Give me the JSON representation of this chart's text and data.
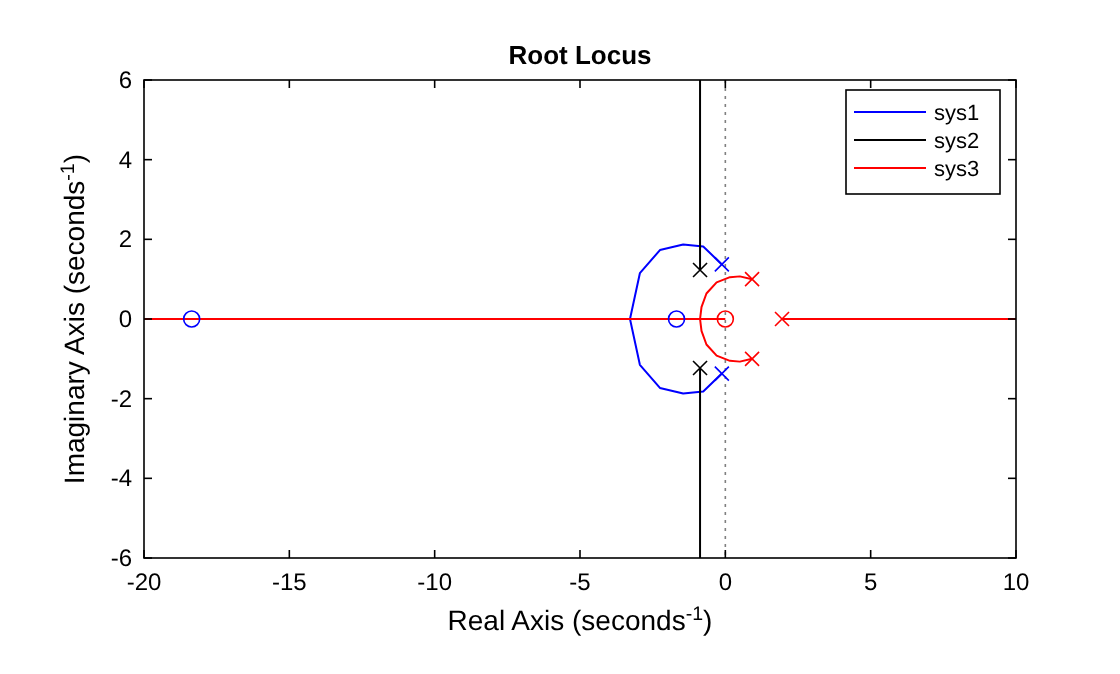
{
  "chart_data": {
    "type": "line",
    "title": "Root Locus",
    "xlabel": "Real Axis (seconds$^{-1}$)",
    "ylabel": "Imaginary Axis (seconds$^{-1}$)",
    "xlim": [
      -20,
      10
    ],
    "xticks": [
      -20,
      -15,
      -10,
      -5,
      0,
      5,
      10
    ],
    "ylim": [
      -6,
      6
    ],
    "yticks": [
      -6,
      -4,
      -2,
      0,
      2,
      4,
      6
    ],
    "grid": false,
    "legend": "top right",
    "line_style": "solid",
    "ref_lines": [
      {
        "axis": "x",
        "value": 0,
        "color": "#808080",
        "line_style": "dotted"
      }
    ],
    "series": [
      {
        "name": "sys1",
        "color": "#0000ff",
        "marker": "none",
        "x": [
          -0.12,
          -0.76,
          -1.45,
          -2.25,
          -2.94,
          -3.28,
          -2.94,
          -2.25,
          -1.45,
          -0.76,
          -0.12
        ],
        "values": [
          1.37,
          1.82,
          1.87,
          1.73,
          1.15,
          0,
          -1.15,
          -1.73,
          -1.87,
          -1.82,
          -1.37
        ]
      },
      {
        "name": "sys2",
        "color": "#000000",
        "marker": "none",
        "x": [
          -0.87,
          -0.87
        ],
        "values": [
          1.23,
          6
        ]
      },
      {
        "color": "#000000",
        "marker": "none",
        "x": [
          -0.87,
          -0.87
        ],
        "values": [
          -1.23,
          -6
        ]
      },
      {
        "name": "sys3",
        "color": "#ff0000",
        "marker": "none",
        "x": [
          0.92,
          0.5,
          0.16,
          -0.3,
          -0.65,
          -0.82,
          -0.87,
          -0.82,
          -0.65,
          -0.3,
          0.16,
          0.5,
          0.92
        ],
        "values": [
          1.0,
          1.07,
          1.05,
          0.92,
          0.64,
          0.3,
          0,
          -0.3,
          -0.64,
          -0.92,
          -1.05,
          -1.07,
          -1.0
        ]
      },
      {
        "color": "#ff0000",
        "marker": "none",
        "x": [
          -20,
          0
        ],
        "values": [
          0,
          0
        ]
      },
      {
        "color": "#ff0000",
        "marker": "none",
        "x": [
          1.95,
          10
        ],
        "values": [
          0,
          0
        ]
      },
      {
        "type": "scatter",
        "color": "#0000ff",
        "marker": "cross",
        "x": [
          -0.12,
          -0.12
        ],
        "values": [
          1.37,
          -1.37
        ]
      },
      {
        "type": "scatter",
        "color": "#0000ff",
        "marker": "circle",
        "x": [
          -18.36,
          -1.68
        ],
        "values": [
          0,
          0
        ]
      },
      {
        "type": "scatter",
        "color": "#000000",
        "marker": "cross",
        "x": [
          -0.87,
          -0.87
        ],
        "values": [
          1.23,
          -1.23
        ]
      },
      {
        "type": "scatter",
        "color": "#ff0000",
        "marker": "cross",
        "x": [
          0.92,
          0.92,
          1.95
        ],
        "values": [
          1.0,
          -1.0,
          0
        ]
      },
      {
        "type": "scatter",
        "color": "#ff0000",
        "marker": "circle",
        "x": [
          0
        ],
        "values": [
          0
        ]
      }
    ]
  }
}
